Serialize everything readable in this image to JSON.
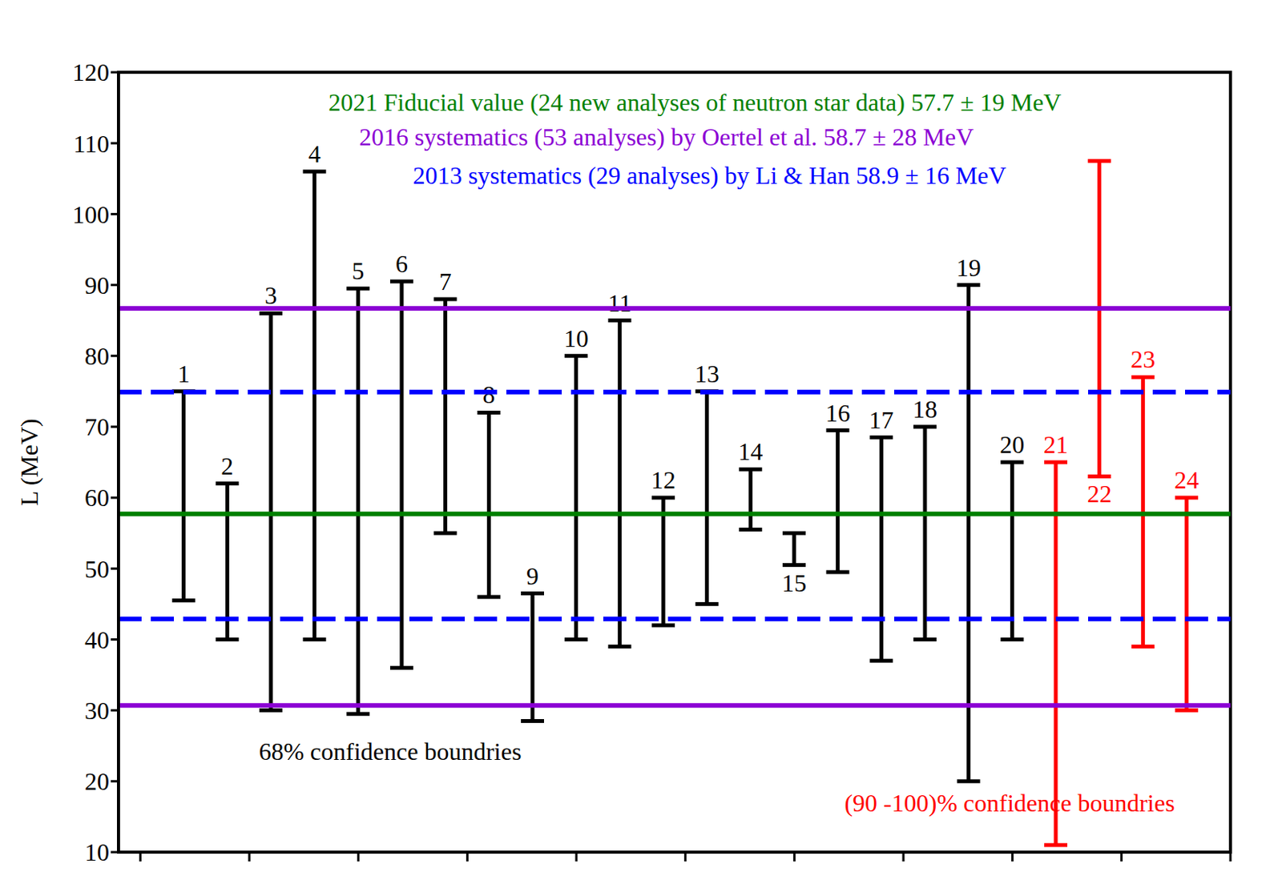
{
  "chart_data": {
    "type": "errorbar",
    "y_label": "L (MeV)",
    "xlim": [
      -0.5,
      25
    ],
    "xticks": [
      0,
      2.5,
      5,
      7.5,
      10,
      12.5,
      15,
      17.5,
      20,
      22.5,
      25
    ],
    "ylim": [
      10,
      120
    ],
    "yticks": [
      10,
      20,
      30,
      40,
      50,
      60,
      70,
      80,
      90,
      100,
      110,
      120
    ],
    "grid": false,
    "tick_labels": "y",
    "series": [
      {
        "name": "68% confidence boundries",
        "color": "#000000",
        "x": [
          1,
          2,
          3,
          4,
          5,
          6,
          7,
          8,
          9,
          10,
          11,
          12,
          13,
          14,
          15,
          16,
          17,
          18,
          19,
          20
        ],
        "low": [
          45.5,
          40,
          30,
          40,
          29.5,
          36,
          55,
          46,
          28.5,
          40,
          39,
          42,
          45,
          55.5,
          50.5,
          49.5,
          37,
          40,
          20,
          40
        ],
        "high": [
          75,
          62,
          86,
          106,
          89.5,
          90.5,
          88,
          72,
          46.5,
          80,
          85,
          60,
          75,
          64,
          55,
          69.5,
          68.5,
          70,
          90,
          65
        ]
      },
      {
        "name": "(90 -100)% confidence boundries",
        "color": "#ff0000",
        "x": [
          21,
          22,
          23,
          24
        ],
        "low": [
          11,
          63,
          39,
          30
        ],
        "high": [
          65,
          107.5,
          77,
          60
        ]
      }
    ],
    "reference_lines": [
      {
        "label": "2021 Fiducial value (24 new analyses of neutron star data) 57.7 ± 19 MeV",
        "color": "#008000",
        "lines": [
          57.7
        ],
        "line_style": "solid"
      },
      {
        "label": "2016 systematics (53 analyses) by Oertel et al. 58.7 ± 28 MeV",
        "color": "#8b00d4",
        "lines": [
          30.7,
          86.7
        ],
        "line_style": "solid"
      },
      {
        "label": "2013 systematics (29 analyses) by Li & Han 58.9 ± 16 MeV",
        "color": "#0000ff",
        "lines": [
          42.9,
          74.9
        ],
        "line_style": "dashed"
      }
    ]
  }
}
